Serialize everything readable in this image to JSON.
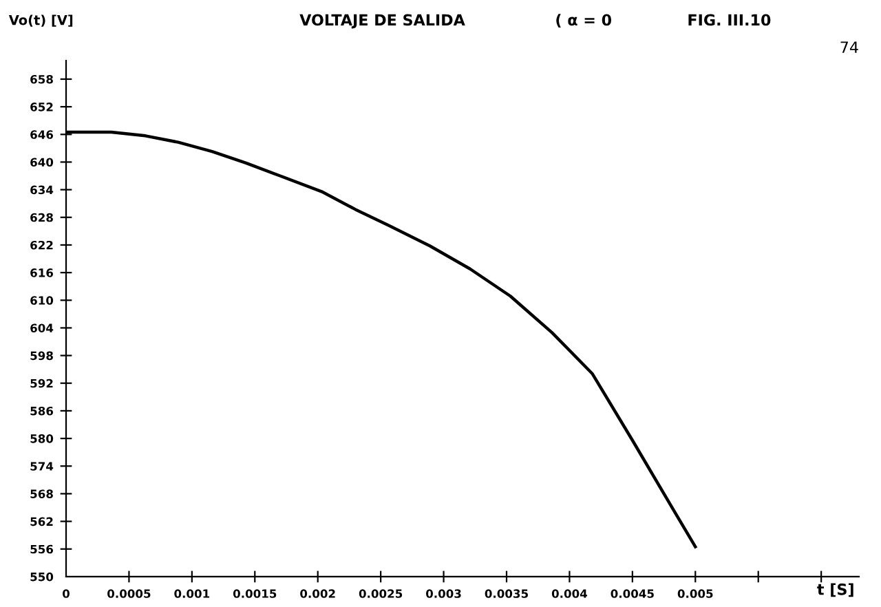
{
  "chart_data": {
    "type": "line",
    "title": "VOLTAJE DE SALIDA",
    "subtitle": "( α = 0",
    "annotations": [
      "FIG. III.10",
      "74"
    ],
    "xlabel": "t [S]",
    "ylabel": "Vo(t) [V]",
    "x": [
      0,
      0.00036,
      0.00063,
      0.00089,
      0.00116,
      0.00143,
      0.0017,
      0.00203,
      0.0023,
      0.00256,
      0.00289,
      0.00321,
      0.00353,
      0.00386,
      0.00418,
      0.0045,
      0.00483,
      0.005
    ],
    "series": [
      {
        "color": "#000000",
        "values": [
          646.5,
          646.5,
          645.7,
          644.3,
          642.3,
          639.8,
          637.0,
          633.6,
          629.7,
          626.3,
          621.8,
          616.8,
          610.9,
          603.0,
          594.1,
          579.6,
          564.3,
          556.5
        ]
      }
    ],
    "xlim": [
      0,
      0.0063
    ],
    "ylim": [
      550,
      662
    ],
    "xticks": [
      {
        "value": 0,
        "label": "0"
      },
      0.0005,
      0.001,
      0.0015,
      0.002,
      0.0025,
      0.003,
      0.0035,
      0.004,
      0.0045,
      0.005,
      {
        "value": 0.0055,
        "label": null
      },
      {
        "value": 0.006,
        "label": null
      }
    ],
    "yticks": [
      550,
      556,
      562,
      568,
      574,
      580,
      586,
      592,
      598,
      604,
      610,
      616,
      622,
      628,
      634,
      640,
      646,
      652,
      658
    ],
    "grid": false,
    "marker": "none",
    "line_style": "solid"
  }
}
